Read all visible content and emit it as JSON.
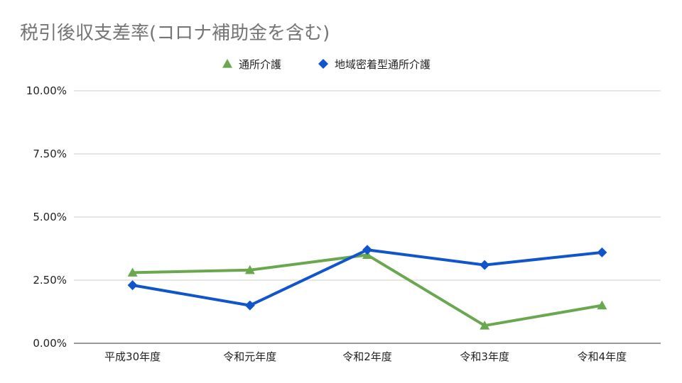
{
  "chart_data": {
    "type": "line",
    "title": "税引後収支差率(コロナ補助金を含む)",
    "categories": [
      "平成30年度",
      "令和元年度",
      "令和2年度",
      "令和3年度",
      "令和4年度"
    ],
    "series": [
      {
        "name": "通所介護",
        "values": [
          2.8,
          2.9,
          3.5,
          0.7,
          1.5
        ],
        "color": "#6aa84f",
        "marker": "triangle"
      },
      {
        "name": "地域密着型通所介護",
        "values": [
          2.3,
          1.5,
          3.7,
          3.1,
          3.6
        ],
        "color": "#1155cc",
        "marker": "diamond"
      }
    ],
    "ylim": [
      0,
      10
    ],
    "yticks": [
      0,
      2.5,
      5,
      7.5,
      10
    ],
    "ytick_labels": [
      "0.00%",
      "2.50%",
      "5.00%",
      "7.50%",
      "10.00%"
    ],
    "xlabel": "",
    "ylabel": "",
    "grid": true,
    "legend_position": "top-center"
  }
}
